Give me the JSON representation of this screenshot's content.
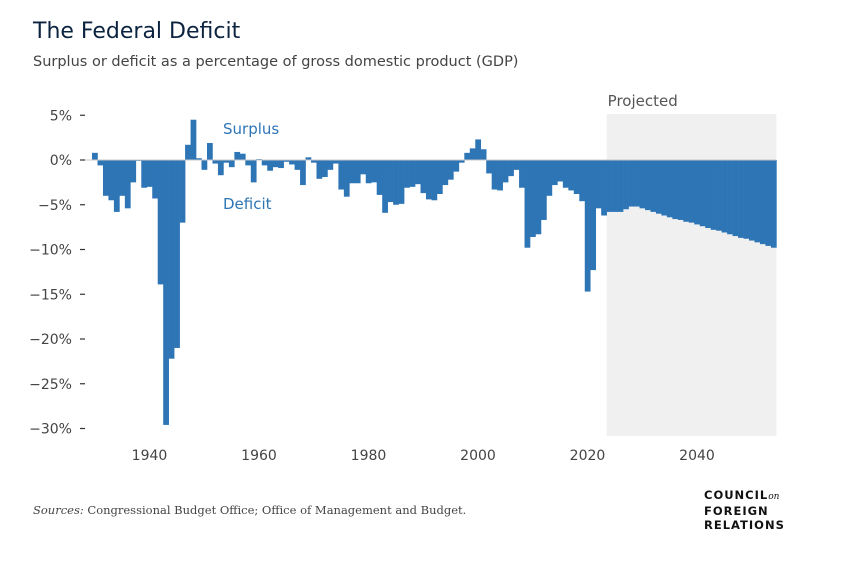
{
  "header": {
    "title": "The Federal Deficit",
    "subtitle": "Surplus or deficit as a percentage of gross domestic product (GDP)"
  },
  "chart_data": {
    "type": "bar",
    "title": "The Federal Deficit",
    "subtitle": "Surplus or deficit as a percentage of gross domestic product (GDP)",
    "x_ticks": [
      1940,
      1960,
      1980,
      2000,
      2020,
      2040
    ],
    "y_ticks": [
      5,
      0,
      -5,
      -10,
      -15,
      -20,
      -25,
      -30
    ],
    "y_tick_labels": [
      "5%",
      "0%",
      "−5%",
      "−10%",
      "−15%",
      "−20%",
      "−25%",
      "−30%"
    ],
    "xlim": [
      1927,
      2054
    ],
    "ylim": [
      -31,
      6
    ],
    "bar_color": "#2e75b6",
    "shade_color": "#f0f0f0",
    "projected_label": "Projected",
    "projected_start": 2024,
    "annotations": {
      "surplus": "Surplus",
      "deficit": "Deficit"
    },
    "years": [
      1930,
      1931,
      1932,
      1933,
      1934,
      1935,
      1936,
      1937,
      1938,
      1939,
      1940,
      1941,
      1942,
      1943,
      1944,
      1945,
      1946,
      1947,
      1948,
      1949,
      1950,
      1951,
      1952,
      1953,
      1954,
      1955,
      1956,
      1957,
      1958,
      1959,
      1960,
      1961,
      1962,
      1963,
      1964,
      1965,
      1966,
      1967,
      1968,
      1969,
      1970,
      1971,
      1972,
      1973,
      1974,
      1975,
      1976,
      1977,
      1978,
      1979,
      1980,
      1981,
      1982,
      1983,
      1984,
      1985,
      1986,
      1987,
      1988,
      1989,
      1990,
      1991,
      1992,
      1993,
      1994,
      1995,
      1996,
      1997,
      1998,
      1999,
      2000,
      2001,
      2002,
      2003,
      2004,
      2005,
      2006,
      2007,
      2008,
      2009,
      2010,
      2011,
      2012,
      2013,
      2014,
      2015,
      2016,
      2017,
      2018,
      2019,
      2020,
      2021,
      2022,
      2023,
      2024,
      2025,
      2026,
      2027,
      2028,
      2029,
      2030,
      2031,
      2032,
      2033,
      2034,
      2035,
      2036,
      2037,
      2038,
      2039,
      2040,
      2041,
      2042,
      2043,
      2044,
      2045,
      2046,
      2047,
      2048,
      2049,
      2050,
      2051,
      2052,
      2053,
      2054
    ],
    "values": [
      0.8,
      -0.6,
      -4.0,
      -4.5,
      -5.8,
      -4.0,
      -5.4,
      -2.5,
      -0.1,
      -3.1,
      -3.0,
      -4.3,
      -13.9,
      -29.6,
      -22.2,
      -21.0,
      -7.0,
      1.7,
      4.5,
      0.2,
      -1.1,
      1.9,
      -0.4,
      -1.7,
      -0.3,
      -0.8,
      0.9,
      0.7,
      -0.6,
      -2.5,
      0.1,
      -0.6,
      -1.2,
      -0.8,
      -0.9,
      -0.2,
      -0.5,
      -1.1,
      -2.8,
      0.3,
      -0.3,
      -2.1,
      -1.9,
      -1.1,
      -0.4,
      -3.3,
      -4.1,
      -2.6,
      -2.6,
      -1.6,
      -2.6,
      -2.5,
      -3.9,
      -5.9,
      -4.7,
      -5.0,
      -4.9,
      -3.1,
      -3.0,
      -2.7,
      -3.7,
      -4.4,
      -4.5,
      -3.8,
      -2.8,
      -2.2,
      -1.3,
      -0.3,
      0.8,
      1.3,
      2.3,
      1.2,
      -1.5,
      -3.3,
      -3.4,
      -2.5,
      -1.8,
      -1.1,
      -3.1,
      -9.8,
      -8.6,
      -8.3,
      -6.7,
      -4.0,
      -2.8,
      -2.4,
      -3.1,
      -3.4,
      -3.8,
      -4.6,
      -14.7,
      -12.3,
      -5.4,
      -6.2,
      -5.8,
      -5.8,
      -5.8,
      -5.5,
      -5.2,
      -5.2,
      -5.4,
      -5.6,
      -5.8,
      -6.0,
      -6.2,
      -6.4,
      -6.6,
      -6.7,
      -6.9,
      -7.0,
      -7.2,
      -7.4,
      -7.6,
      -7.8,
      -7.9,
      -8.1,
      -8.3,
      -8.5,
      -8.7,
      -8.8,
      -9.0,
      -9.2,
      -9.4,
      -9.6,
      -9.8
    ]
  },
  "footer": {
    "source_label": "Sources:",
    "source_text": " Congressional Budget Office; Office of Management and Budget.",
    "logo_line1": "COUNCIL",
    "logo_on": "on",
    "logo_line2": "FOREIGN",
    "logo_line3": "RELATIONS"
  }
}
